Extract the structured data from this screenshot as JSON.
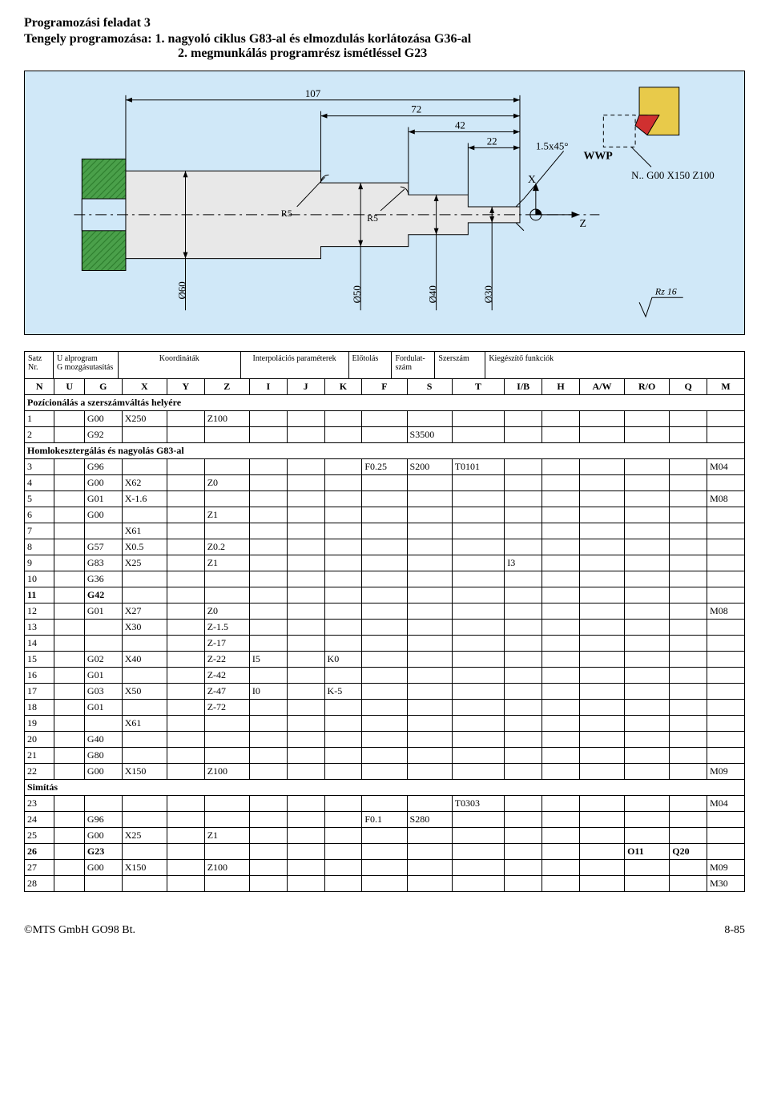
{
  "title": "Programozási feladat 3",
  "subtitle1": "Tengely programozása: 1. nagyoló ciklus G83-al és elmozdulás korlátozása G36-al",
  "subtitle2": "2. megmunkálás programrész ismétléssel G23",
  "diagram": {
    "background": "#d0e8f8",
    "hatch_color": "#4aa04a",
    "part_fill": "#e8e8e8",
    "tool_holder": "#e8ca4a",
    "tool_insert": "#d03030",
    "axis_color": "#000000",
    "dim_color": "#000000",
    "labels": {
      "wwp": "WWP",
      "origin_note": "N.. G00 X150 Z100",
      "rz": "Rz 16",
      "dim107": "107",
      "dim72": "72",
      "dim42": "42",
      "dim22": "22",
      "cham": "1.5x45°",
      "r5a": "R5",
      "r5b": "R5",
      "d60": "Ø60",
      "d50": "Ø50",
      "d40": "Ø40",
      "d30": "Ø30",
      "x": "X",
      "z": "Z"
    }
  },
  "header_labels": {
    "col1a": "Satz",
    "col1b": "Nr.",
    "col2a": "U alprogram",
    "col2b": "G mozgásutasítás",
    "col3": "Koordináták",
    "col4": "Interpolációs paraméterek",
    "col5": "Előtolás",
    "col6a": "Fordulat-",
    "col6b": "szám",
    "col7": "Szerszám",
    "col8": "Kiegészítő funkciók"
  },
  "columns": [
    "N",
    "U",
    "G",
    "X",
    "Y",
    "Z",
    "I",
    "J",
    "K",
    "F",
    "S",
    "T",
    "I/B",
    "H",
    "A/W",
    "R/O",
    "Q",
    "M"
  ],
  "col_widths_pct": [
    4,
    4,
    5,
    6,
    5,
    6,
    5,
    5,
    5,
    6,
    6,
    7,
    5,
    5,
    6,
    6,
    5,
    5
  ],
  "rows": [
    {
      "type": "section",
      "label": "Pozícionálás a szerszámváltás helyére"
    },
    {
      "N": "1",
      "G": "G00",
      "X": "X250",
      "Z": "Z100"
    },
    {
      "N": "2",
      "G": "G92",
      "S": "S3500"
    },
    {
      "type": "section",
      "label": "Homlokesztergálás és nagyolás G83-al"
    },
    {
      "N": "3",
      "G": "G96",
      "F": "F0.25",
      "S": "S200",
      "T": "T0101",
      "M": "M04"
    },
    {
      "N": "4",
      "G": "G00",
      "X": "X62",
      "Z": "Z0"
    },
    {
      "N": "5",
      "G": "G01",
      "X": "X-1.6",
      "M": "M08"
    },
    {
      "N": "6",
      "G": "G00",
      "Z": "Z1"
    },
    {
      "N": "7",
      "X": "X61"
    },
    {
      "N": "8",
      "G": "G57",
      "X": "X0.5",
      "Z": "Z0.2"
    },
    {
      "N": "9",
      "G": "G83",
      "X": "X25",
      "Z": "Z1",
      "IB": "I3"
    },
    {
      "N": "10",
      "G": "G36"
    },
    {
      "N": "11",
      "G": "G42",
      "bold": true
    },
    {
      "N": "12",
      "G": "G01",
      "X": "X27",
      "Z": "Z0",
      "M": "M08"
    },
    {
      "N": "13",
      "X": "X30",
      "Z": "Z-1.5"
    },
    {
      "N": "14",
      "Z": "Z-17"
    },
    {
      "N": "15",
      "G": "G02",
      "X": "X40",
      "Z": "Z-22",
      "I": "I5",
      "K": "K0"
    },
    {
      "N": "16",
      "G": "G01",
      "Z": "Z-42"
    },
    {
      "N": "17",
      "G": "G03",
      "X": "X50",
      "Z": "Z-47",
      "I": "I0",
      "K": "K-5"
    },
    {
      "N": "18",
      "G": "G01",
      "Z": "Z-72"
    },
    {
      "N": "19",
      "X": "X61"
    },
    {
      "N": "20",
      "G": "G40"
    },
    {
      "N": "21",
      "G": "G80"
    },
    {
      "N": "22",
      "G": "G00",
      "X": "X150",
      "Z": "Z100",
      "M": "M09"
    },
    {
      "type": "section",
      "label": "Simítás"
    },
    {
      "N": "23",
      "T": "T0303",
      "M": "M04"
    },
    {
      "N": "24",
      "G": "G96",
      "F": "F0.1",
      "S": "S280"
    },
    {
      "N": "25",
      "G": "G00",
      "X": "X25",
      "Z": "Z1"
    },
    {
      "N": "26",
      "G": "G23",
      "RO": "O11",
      "Q": "Q20",
      "bold": true
    },
    {
      "N": "27",
      "G": "G00",
      "X": "X150",
      "Z": "Z100",
      "M": "M09"
    },
    {
      "N": "28",
      "M": "M30"
    }
  ],
  "footer_left": "©MTS GmbH  GO98 Bt.",
  "footer_right": "8-85"
}
